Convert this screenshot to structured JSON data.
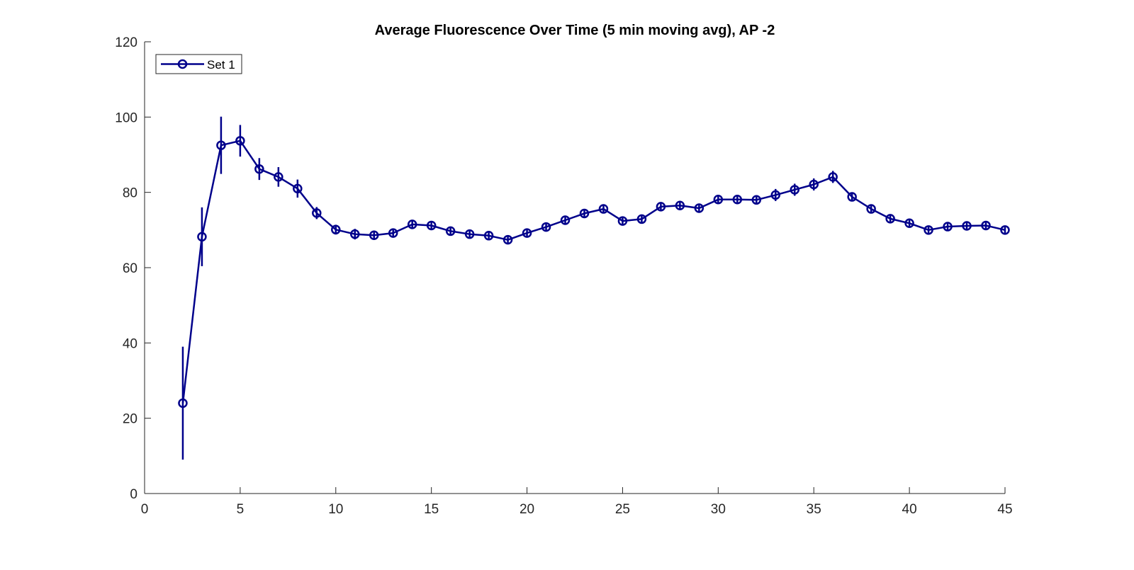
{
  "chart_data": {
    "type": "line",
    "title": "Average Fluorescence Over Time (5 min moving avg), AP -2",
    "xlabel": "",
    "ylabel": "",
    "xlim": [
      0,
      45
    ],
    "ylim": [
      0,
      120
    ],
    "xticks": [
      0,
      5,
      10,
      15,
      20,
      25,
      30,
      35,
      40,
      45
    ],
    "yticks": [
      0,
      20,
      40,
      60,
      80,
      100,
      120
    ],
    "grid": false,
    "legend_position": "top-left",
    "series": [
      {
        "name": "Set 1",
        "color": "#00008B",
        "marker": "circle",
        "x": [
          2,
          3,
          4,
          5,
          6,
          7,
          8,
          9,
          10,
          11,
          12,
          13,
          14,
          15,
          16,
          17,
          18,
          19,
          20,
          21,
          22,
          23,
          24,
          25,
          26,
          27,
          28,
          29,
          30,
          31,
          32,
          33,
          34,
          35,
          36,
          37,
          38,
          39,
          40,
          41,
          42,
          43,
          44,
          45
        ],
        "y": [
          24,
          68.2,
          92.5,
          93.7,
          86.2,
          84.1,
          81,
          74.5,
          70.1,
          68.9,
          68.6,
          69.2,
          71.5,
          71.2,
          69.7,
          68.9,
          68.5,
          67.4,
          69.2,
          70.8,
          72.6,
          74.4,
          75.6,
          72.4,
          72.9,
          76.2,
          76.5,
          75.8,
          78.1,
          78.1,
          78,
          79.3,
          80.7,
          82.1,
          84.1,
          78.8,
          75.6,
          73,
          71.8,
          70,
          70.9,
          71.1,
          71.2,
          70
        ],
        "error": [
          15,
          7.8,
          7.6,
          4.2,
          2.9,
          2.6,
          2.4,
          1.6,
          1.3,
          1.4,
          1.2,
          1.2,
          1,
          1,
          1,
          1,
          1,
          1,
          1,
          1,
          1,
          1,
          1,
          1,
          1,
          1,
          1,
          1,
          1,
          1,
          1.2,
          1.6,
          1.6,
          1.6,
          1.6,
          1,
          1,
          1,
          1,
          1,
          1,
          1,
          1,
          1
        ]
      }
    ]
  }
}
